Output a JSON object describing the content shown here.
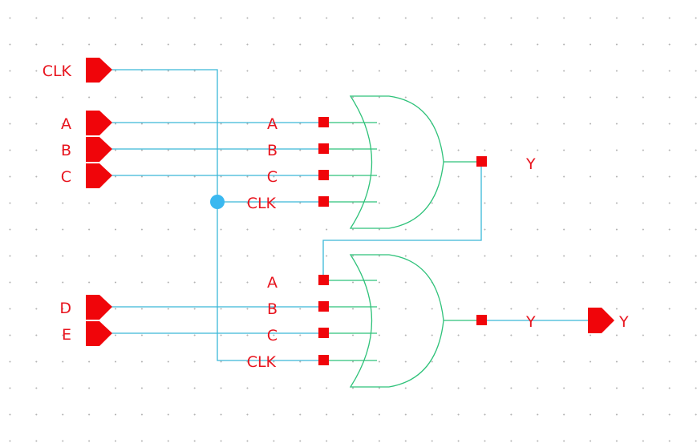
{
  "schematic": {
    "inputs": {
      "clk": "CLK",
      "a": "A",
      "b": "B",
      "c": "C",
      "d": "D",
      "e": "E"
    },
    "output": {
      "name": "Y"
    },
    "gate_top": {
      "pins": [
        "A",
        "B",
        "C",
        "CLK"
      ],
      "out": "Y"
    },
    "gate_bottom": {
      "pins": [
        "A",
        "B",
        "C",
        "CLK"
      ],
      "out": "Y"
    }
  },
  "colors": {
    "port": "#f0050a",
    "label": "#e8141e",
    "wire": "#3ab8d8",
    "gate": "#2fc27a",
    "junction": "#3ab8f0"
  }
}
